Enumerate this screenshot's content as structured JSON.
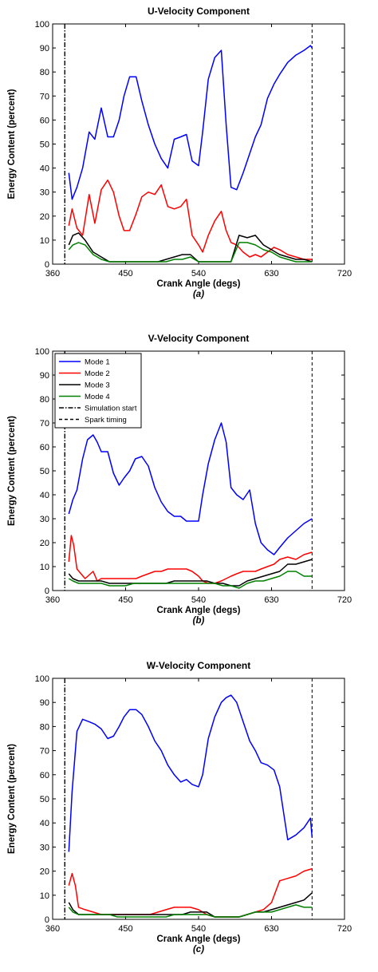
{
  "chart_data": [
    {
      "type": "line",
      "title": "U-Velocity Component",
      "xlabel": "Crank Angle (degs)",
      "ylabel": "Energy Content (percent)",
      "panel_label": "(a)",
      "xlim": [
        360,
        720
      ],
      "ylim": [
        0,
        100
      ],
      "xticks": [
        360,
        450,
        540,
        630,
        720
      ],
      "yticks": [
        0,
        10,
        20,
        30,
        40,
        50,
        60,
        70,
        80,
        90,
        100
      ],
      "grid": false,
      "legend": null,
      "series": [
        {
          "color": "#0000ff",
          "x": [
            380,
            384,
            390,
            397,
            405,
            412,
            420,
            428,
            435,
            442,
            448,
            455,
            463,
            470,
            478,
            486,
            494,
            502,
            510,
            518,
            525,
            532,
            540,
            545,
            552,
            560,
            568,
            574,
            580,
            587,
            595,
            603,
            610,
            617,
            625,
            633,
            640,
            650,
            660,
            670,
            678,
            680
          ],
          "y": [
            38,
            27,
            32,
            40,
            55,
            52,
            65,
            53,
            53,
            60,
            70,
            78,
            78,
            68,
            58,
            50,
            44,
            40,
            52,
            53,
            54,
            43,
            41,
            55,
            77,
            86,
            89,
            58,
            32,
            31,
            38,
            46,
            53,
            58,
            69,
            75,
            79,
            84,
            87,
            89,
            91,
            90
          ]
        },
        {
          "color": "#ff0000",
          "x": [
            380,
            384,
            390,
            397,
            405,
            412,
            420,
            428,
            435,
            442,
            448,
            455,
            463,
            470,
            478,
            486,
            494,
            502,
            510,
            518,
            525,
            532,
            540,
            545,
            552,
            560,
            568,
            574,
            580,
            587,
            595,
            603,
            610,
            617,
            625,
            633,
            640,
            650,
            660,
            670,
            678,
            680
          ],
          "y": [
            16,
            23,
            15,
            12,
            29,
            17,
            31,
            35,
            30,
            20,
            14,
            14,
            21,
            28,
            30,
            29,
            33,
            24,
            23,
            24,
            27,
            12,
            8,
            5,
            12,
            18,
            22,
            14,
            9,
            8,
            5,
            3,
            4,
            3,
            5,
            7,
            6,
            4,
            3,
            2,
            2,
            2
          ]
        },
        {
          "color": "#000000",
          "x": [
            380,
            385,
            392,
            400,
            410,
            420,
            430,
            440,
            450,
            460,
            470,
            480,
            490,
            500,
            510,
            520,
            530,
            540,
            550,
            560,
            570,
            580,
            590,
            600,
            610,
            620,
            630,
            640,
            650,
            660,
            670,
            680
          ],
          "y": [
            8,
            12,
            13,
            10,
            5,
            3,
            1,
            1,
            1,
            1,
            1,
            1,
            1,
            2,
            3,
            4,
            4,
            1,
            1,
            1,
            1,
            1,
            12,
            11,
            12,
            8,
            6,
            4,
            3,
            2,
            2,
            1
          ]
        },
        {
          "color": "#008000",
          "x": [
            380,
            385,
            392,
            400,
            410,
            420,
            430,
            440,
            450,
            460,
            470,
            480,
            490,
            500,
            510,
            520,
            530,
            540,
            550,
            560,
            570,
            580,
            590,
            600,
            610,
            620,
            630,
            640,
            650,
            660,
            670,
            680
          ],
          "y": [
            6,
            8,
            9,
            8,
            4,
            2,
            1,
            1,
            1,
            1,
            1,
            1,
            1,
            1,
            2,
            2,
            3,
            1,
            1,
            1,
            1,
            1,
            9,
            9,
            8,
            6,
            5,
            3,
            2,
            1,
            1,
            1
          ]
        }
      ],
      "vlines": [
        {
          "x": 375,
          "style": "dashdot"
        },
        {
          "x": 680,
          "style": "dashed"
        }
      ]
    },
    {
      "type": "line",
      "title": "V-Velocity Component",
      "xlabel": "Crank Angle (degs)",
      "ylabel": "Energy Content (percent)",
      "panel_label": "(b)",
      "xlim": [
        360,
        720
      ],
      "ylim": [
        0,
        100
      ],
      "xticks": [
        360,
        450,
        540,
        630,
        720
      ],
      "yticks": [
        0,
        10,
        20,
        30,
        40,
        50,
        60,
        70,
        80,
        90,
        100
      ],
      "grid": false,
      "legend": {
        "position": "top-left",
        "entries": [
          {
            "label": "Mode 1",
            "color": "#0000ff",
            "style": "solid"
          },
          {
            "label": "Mode 2",
            "color": "#ff0000",
            "style": "solid"
          },
          {
            "label": "Mode 3",
            "color": "#000000",
            "style": "solid"
          },
          {
            "label": "Mode 4",
            "color": "#008000",
            "style": "solid"
          },
          {
            "label": "Simulation start",
            "color": "#000000",
            "style": "dashdot"
          },
          {
            "label": "Spark timing",
            "color": "#000000",
            "style": "dashed"
          }
        ]
      },
      "series": [
        {
          "color": "#0000ff",
          "x": [
            380,
            385,
            390,
            397,
            403,
            410,
            415,
            420,
            428,
            435,
            442,
            448,
            455,
            462,
            470,
            478,
            486,
            494,
            502,
            510,
            518,
            525,
            532,
            540,
            545,
            552,
            560,
            568,
            574,
            580,
            587,
            595,
            603,
            610,
            617,
            625,
            633,
            640,
            650,
            660,
            670,
            680
          ],
          "y": [
            32,
            38,
            42,
            55,
            63,
            65,
            62,
            58,
            58,
            49,
            44,
            47,
            50,
            55,
            56,
            52,
            43,
            37,
            33,
            31,
            31,
            29,
            29,
            29,
            40,
            53,
            63,
            70,
            62,
            43,
            40,
            38,
            42,
            28,
            20,
            17,
            15,
            18,
            22,
            25,
            28,
            30
          ]
        },
        {
          "color": "#ff0000",
          "x": [
            380,
            383,
            386,
            390,
            395,
            400,
            410,
            415,
            420,
            428,
            435,
            442,
            448,
            455,
            463,
            470,
            478,
            486,
            494,
            502,
            510,
            518,
            525,
            532,
            540,
            545,
            552,
            560,
            568,
            574,
            580,
            587,
            595,
            603,
            610,
            617,
            625,
            633,
            640,
            650,
            660,
            670,
            680
          ],
          "y": [
            12,
            23,
            19,
            9,
            7,
            5,
            8,
            4,
            5,
            5,
            5,
            5,
            5,
            5,
            5,
            6,
            7,
            8,
            8,
            9,
            9,
            9,
            9,
            8,
            6,
            4,
            3,
            3,
            4,
            5,
            6,
            7,
            8,
            8,
            8,
            9,
            10,
            11,
            13,
            14,
            13,
            15,
            16
          ]
        },
        {
          "color": "#000000",
          "x": [
            380,
            385,
            392,
            400,
            410,
            420,
            430,
            440,
            450,
            460,
            470,
            480,
            490,
            500,
            510,
            520,
            530,
            540,
            550,
            560,
            570,
            580,
            590,
            600,
            610,
            620,
            630,
            640,
            650,
            660,
            670,
            680
          ],
          "y": [
            7,
            5,
            4,
            4,
            4,
            4,
            3,
            3,
            3,
            3,
            3,
            3,
            3,
            3,
            4,
            4,
            4,
            4,
            4,
            3,
            3,
            2,
            2,
            4,
            5,
            6,
            7,
            8,
            11,
            11,
            12,
            13
          ]
        },
        {
          "color": "#008000",
          "x": [
            380,
            385,
            392,
            400,
            410,
            420,
            430,
            440,
            450,
            460,
            470,
            480,
            490,
            500,
            510,
            520,
            530,
            540,
            550,
            560,
            570,
            580,
            590,
            600,
            610,
            620,
            630,
            640,
            650,
            660,
            670,
            680
          ],
          "y": [
            5,
            4,
            3,
            3,
            3,
            3,
            2,
            2,
            2,
            3,
            3,
            3,
            3,
            3,
            3,
            3,
            3,
            3,
            3,
            3,
            2,
            2,
            1,
            3,
            4,
            4,
            5,
            6,
            8,
            8,
            6,
            6
          ]
        }
      ],
      "vlines": [
        {
          "x": 375,
          "style": "dashdot"
        },
        {
          "x": 680,
          "style": "dashed"
        }
      ]
    },
    {
      "type": "line",
      "title": "W-Velocity Component",
      "xlabel": "Crank Angle (degs)",
      "ylabel": "Energy Content (percent)",
      "panel_label": "(c)",
      "xlim": [
        360,
        720
      ],
      "ylim": [
        0,
        100
      ],
      "xticks": [
        360,
        450,
        540,
        630,
        720
      ],
      "yticks": [
        0,
        10,
        20,
        30,
        40,
        50,
        60,
        70,
        80,
        90,
        100
      ],
      "grid": false,
      "legend": null,
      "series": [
        {
          "color": "#0000ff",
          "x": [
            380,
            384,
            390,
            397,
            405,
            412,
            420,
            428,
            435,
            442,
            448,
            455,
            463,
            470,
            478,
            486,
            494,
            502,
            510,
            518,
            525,
            532,
            540,
            545,
            552,
            560,
            568,
            574,
            580,
            587,
            595,
            603,
            610,
            617,
            625,
            633,
            640,
            650,
            660,
            670,
            678,
            680
          ],
          "y": [
            28,
            53,
            78,
            83,
            82,
            81,
            79,
            75,
            76,
            80,
            84,
            87,
            87,
            85,
            80,
            74,
            70,
            64,
            60,
            57,
            58,
            56,
            55,
            60,
            75,
            84,
            90,
            92,
            93,
            90,
            82,
            74,
            70,
            65,
            64,
            62,
            55,
            33,
            35,
            38,
            42,
            34
          ]
        },
        {
          "color": "#ff0000",
          "x": [
            380,
            384,
            388,
            392,
            400,
            410,
            420,
            430,
            440,
            450,
            460,
            470,
            480,
            490,
            500,
            510,
            520,
            530,
            540,
            550,
            560,
            570,
            580,
            590,
            600,
            610,
            620,
            630,
            640,
            650,
            660,
            670,
            680
          ],
          "y": [
            14,
            19,
            14,
            5,
            4,
            3,
            2,
            2,
            2,
            2,
            2,
            2,
            2,
            3,
            4,
            5,
            5,
            5,
            4,
            2,
            1,
            1,
            1,
            1,
            2,
            3,
            4,
            7,
            16,
            17,
            18,
            20,
            21
          ]
        },
        {
          "color": "#000000",
          "x": [
            380,
            385,
            392,
            400,
            410,
            420,
            430,
            440,
            450,
            460,
            470,
            480,
            490,
            500,
            510,
            520,
            530,
            540,
            550,
            560,
            570,
            580,
            590,
            600,
            610,
            620,
            630,
            640,
            650,
            660,
            670,
            680
          ],
          "y": [
            7,
            4,
            2,
            2,
            2,
            2,
            2,
            2,
            2,
            2,
            2,
            2,
            2,
            2,
            2,
            2,
            3,
            3,
            3,
            1,
            1,
            1,
            1,
            2,
            3,
            3,
            4,
            5,
            6,
            7,
            8,
            11
          ]
        },
        {
          "color": "#008000",
          "x": [
            380,
            385,
            392,
            400,
            410,
            420,
            430,
            440,
            450,
            460,
            470,
            480,
            490,
            500,
            510,
            520,
            530,
            540,
            550,
            560,
            570,
            580,
            590,
            600,
            610,
            620,
            630,
            640,
            650,
            660,
            670,
            680
          ],
          "y": [
            5,
            3,
            2,
            2,
            2,
            2,
            2,
            1,
            1,
            1,
            1,
            1,
            1,
            1,
            2,
            2,
            2,
            2,
            2,
            1,
            1,
            1,
            1,
            2,
            3,
            3,
            3,
            4,
            5,
            6,
            5,
            5
          ]
        }
      ],
      "vlines": [
        {
          "x": 375,
          "style": "dashdot"
        },
        {
          "x": 680,
          "style": "dashed"
        }
      ]
    }
  ]
}
